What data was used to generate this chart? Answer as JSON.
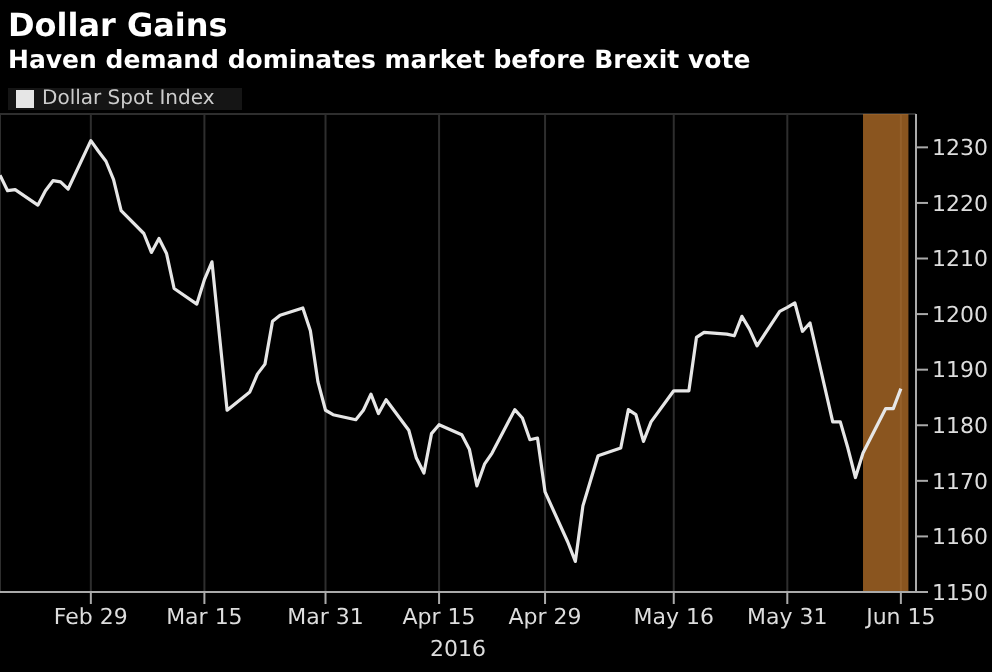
{
  "chart_data": {
    "type": "line",
    "title": "Dollar Gains",
    "subtitle": "Haven demand dominates market before Brexit vote",
    "xlabel": "2016",
    "x": [
      "2016-02-17",
      "2016-02-18",
      "2016-02-19",
      "2016-02-22",
      "2016-02-23",
      "2016-02-24",
      "2016-02-25",
      "2016-02-26",
      "2016-02-29",
      "2016-03-01",
      "2016-03-02",
      "2016-03-03",
      "2016-03-04",
      "2016-03-07",
      "2016-03-08",
      "2016-03-09",
      "2016-03-10",
      "2016-03-11",
      "2016-03-14",
      "2016-03-15",
      "2016-03-16",
      "2016-03-17",
      "2016-03-18",
      "2016-03-21",
      "2016-03-22",
      "2016-03-23",
      "2016-03-24",
      "2016-03-25",
      "2016-03-28",
      "2016-03-29",
      "2016-03-30",
      "2016-03-31",
      "2016-04-01",
      "2016-04-04",
      "2016-04-05",
      "2016-04-06",
      "2016-04-07",
      "2016-04-08",
      "2016-04-11",
      "2016-04-12",
      "2016-04-13",
      "2016-04-14",
      "2016-04-15",
      "2016-04-18",
      "2016-04-19",
      "2016-04-20",
      "2016-04-21",
      "2016-04-22",
      "2016-04-25",
      "2016-04-26",
      "2016-04-27",
      "2016-04-28",
      "2016-04-29",
      "2016-05-02",
      "2016-05-03",
      "2016-05-04",
      "2016-05-05",
      "2016-05-06",
      "2016-05-09",
      "2016-05-10",
      "2016-05-11",
      "2016-05-12",
      "2016-05-13",
      "2016-05-16",
      "2016-05-17",
      "2016-05-18",
      "2016-05-19",
      "2016-05-20",
      "2016-05-23",
      "2016-05-24",
      "2016-05-25",
      "2016-05-26",
      "2016-05-27",
      "2016-05-30",
      "2016-05-31",
      "2016-06-01",
      "2016-06-02",
      "2016-06-03",
      "2016-06-06",
      "2016-06-07",
      "2016-06-08",
      "2016-06-09",
      "2016-06-10",
      "2016-06-13",
      "2016-06-14",
      "2016-06-15"
    ],
    "series": [
      {
        "name": "Dollar Spot Index",
        "color": "#e6e6e6",
        "values": [
          1225,
          1222.2,
          1222.4,
          1219.6,
          1222.2,
          1224,
          1223.8,
          1222.5,
          1231.2,
          1229.3,
          1227.5,
          1224.2,
          1218.6,
          1214.5,
          1211.1,
          1213.6,
          1210.9,
          1204.6,
          1201.8,
          1206.2,
          1209.4,
          1196,
          1182.7,
          1186,
          1189.2,
          1191,
          1198.7,
          1199.8,
          1201.1,
          1197,
          1187.8,
          1182.7,
          1181.9,
          1181,
          1182.7,
          1185.6,
          1182.1,
          1184.6,
          1179.1,
          1174.1,
          1171.4,
          1178.5,
          1180.1,
          1178.3,
          1175.7,
          1169.1,
          1173,
          1175,
          1182.8,
          1181.3,
          1177.4,
          1177.7,
          1168,
          1159,
          1155.5,
          1165.5,
          1170,
          1174.5,
          1175.9,
          1182.8,
          1181.9,
          1177.1,
          1180.6,
          1186.2,
          1186.2,
          1186.2,
          1195.8,
          1196.7,
          1196.4,
          1196.1,
          1199.6,
          1197.3,
          1194.3,
          1200.5,
          1201.2,
          1202,
          1196.9,
          1198.4,
          1180.6,
          1180.6,
          1175.9,
          1170.6,
          1175,
          1183,
          1183,
          1186.6
        ]
      }
    ],
    "xlim": [
      "2016-02-17",
      "2016-06-17"
    ],
    "xticks": [
      {
        "value": "2016-02-29",
        "label": "Feb 29"
      },
      {
        "value": "2016-03-15",
        "label": "Mar 15"
      },
      {
        "value": "2016-03-31",
        "label": "Mar 31"
      },
      {
        "value": "2016-04-15",
        "label": "Apr 15"
      },
      {
        "value": "2016-04-29",
        "label": "Apr 29"
      },
      {
        "value": "2016-05-16",
        "label": "May 16"
      },
      {
        "value": "2016-05-31",
        "label": "May 31"
      },
      {
        "value": "2016-06-15",
        "label": "Jun 15"
      }
    ],
    "ylim": [
      1150,
      1236
    ],
    "yticks": [
      1150,
      1160,
      1170,
      1180,
      1190,
      1200,
      1210,
      1220,
      1230
    ],
    "bands": [
      {
        "axis": "x",
        "from": "2016-06-10",
        "to": "2016-06-16",
        "color": "#b8722a"
      }
    ],
    "grid": true,
    "legend": "top left",
    "marker": "none",
    "line_style": "solid"
  }
}
